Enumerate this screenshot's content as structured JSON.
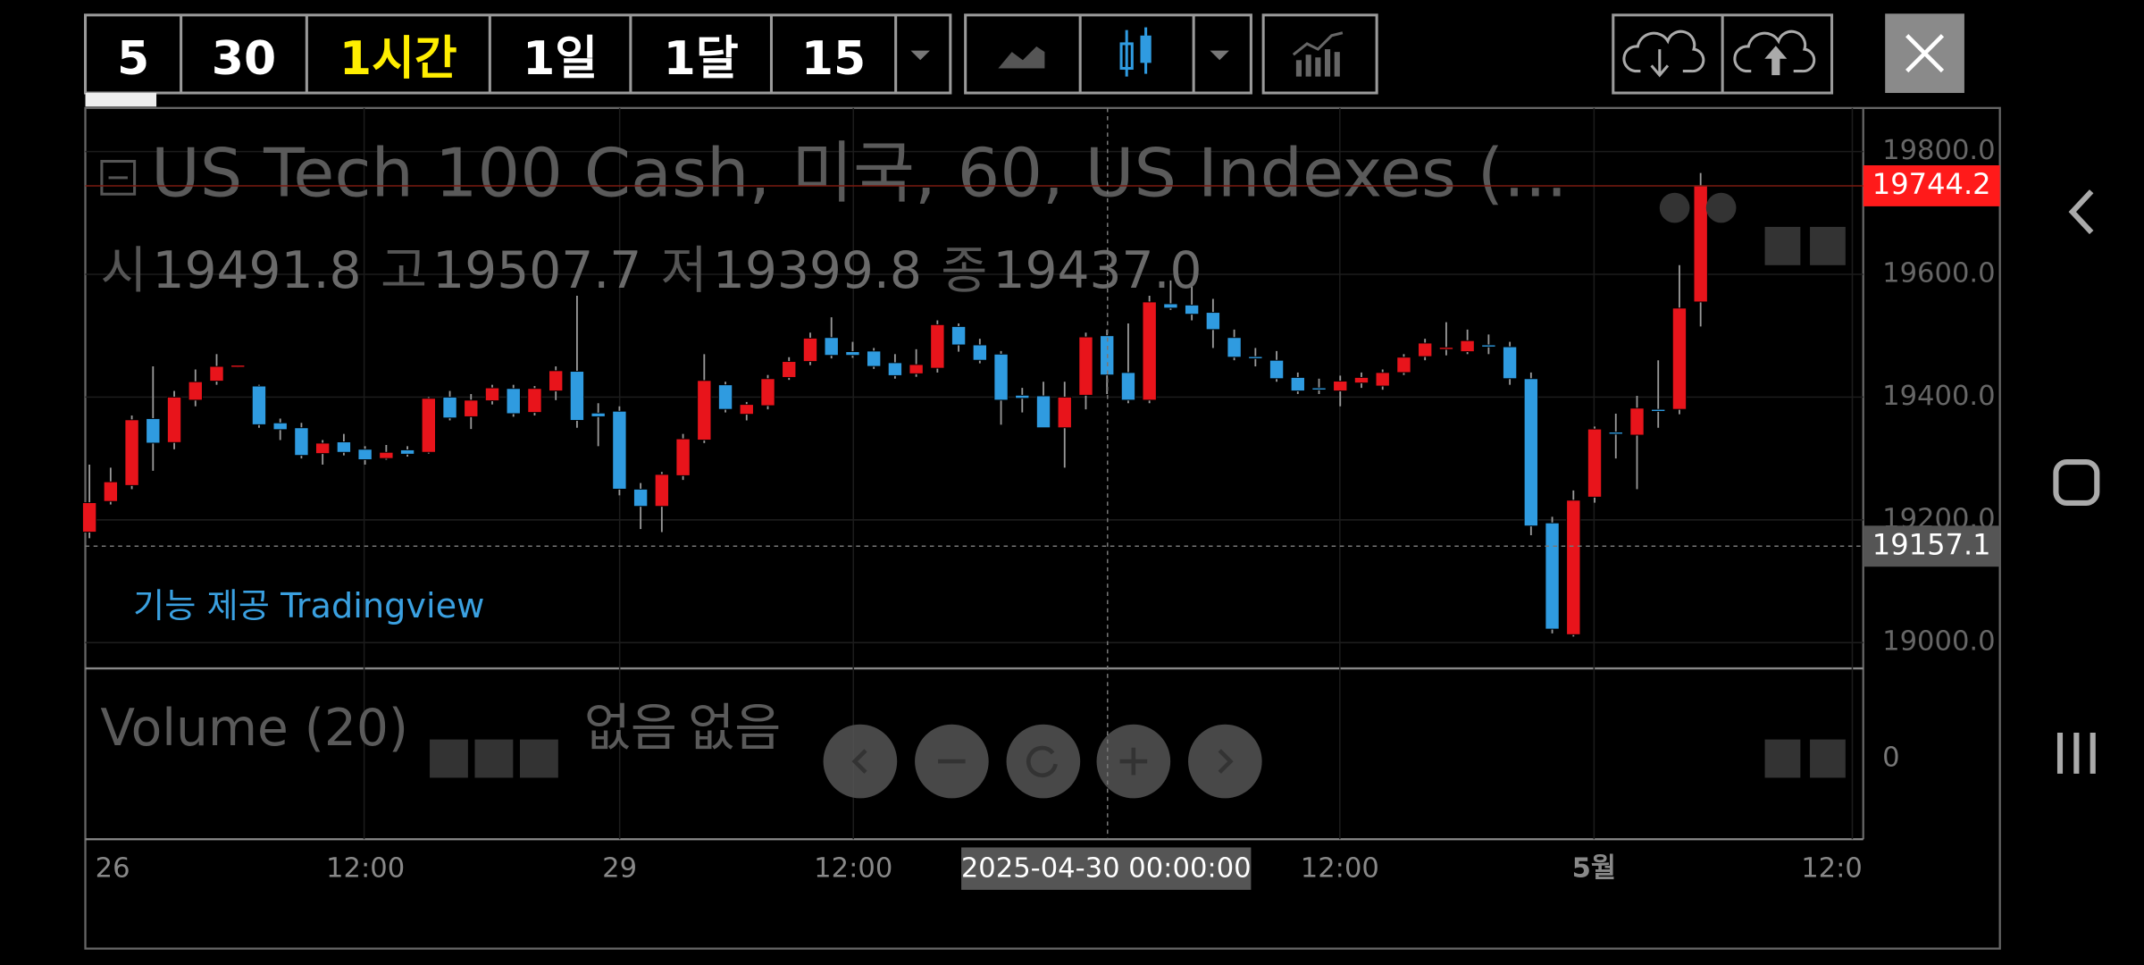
{
  "toolbar": {
    "intervals": [
      "5",
      "30",
      "1시간",
      "1일",
      "1달",
      "15"
    ]
  },
  "chart_data": {
    "type": "candlestick",
    "title": "US Tech 100 Cash, 미국, 60, US Indexes (...",
    "ohlc_legend": [
      {
        "label": "시",
        "value": "19491.8"
      },
      {
        "label": "고",
        "value": "19507.7"
      },
      {
        "label": "저",
        "value": "19399.8"
      },
      {
        "label": "종",
        "value": "19437.0"
      }
    ],
    "attribution": "기능 제공 Tradingview",
    "up_color": "#e8141b",
    "down_color": "#2f9be0",
    "open": [
      19180,
      19230,
      19256,
      19365,
      19326,
      19395,
      19426,
      19450,
      19418,
      19358,
      19350,
      19308,
      19327,
      19315,
      19300,
      19314,
      19310,
      19400,
      19368,
      19394,
      19414,
      19375,
      19410,
      19442,
      19374,
      19377,
      19250,
      19222,
      19272,
      19330,
      19420,
      19372,
      19386,
      19432,
      19458,
      19497,
      19474,
      19475,
      19456,
      19438,
      19447,
      19515,
      19485,
      19470,
      19403,
      19402,
      19350,
      19403,
      19500,
      19440,
      19395,
      19552,
      19550,
      19538,
      19497,
      19466,
      19460,
      19432,
      19415,
      19410,
      19423,
      19418,
      19440,
      19466,
      19478,
      19474,
      19485,
      19482,
      19430,
      19195,
      19013,
      19237,
      19343,
      19338,
      19380,
      19380,
      19555
    ],
    "high": [
      19290,
      19285,
      19370,
      19450,
      19410,
      19445,
      19470,
      19452,
      19420,
      19365,
      19358,
      19330,
      19340,
      19320,
      19322,
      19320,
      19400,
      19410,
      19405,
      19420,
      19420,
      19418,
      19450,
      19565,
      19390,
      19385,
      19260,
      19278,
      19340,
      19470,
      19425,
      19392,
      19436,
      19465,
      19505,
      19530,
      19490,
      19480,
      19470,
      19478,
      19525,
      19520,
      19495,
      19475,
      19415,
      19425,
      19425,
      19505,
      19510,
      19520,
      19565,
      19590,
      19580,
      19560,
      19510,
      19480,
      19475,
      19440,
      19430,
      19435,
      19440,
      19445,
      19470,
      19495,
      19522,
      19510,
      19502,
      19490,
      19440,
      19205,
      19248,
      19352,
      19373,
      19402,
      19460,
      19615,
      19765
    ],
    "low": [
      19170,
      19225,
      19250,
      19280,
      19315,
      19385,
      19420,
      19448,
      19350,
      19330,
      19300,
      19290,
      19305,
      19290,
      19298,
      19303,
      19308,
      19362,
      19348,
      19388,
      19368,
      19370,
      19395,
      19350,
      19320,
      19240,
      19185,
      19180,
      19265,
      19325,
      19375,
      19362,
      19380,
      19428,
      19452,
      19463,
      19464,
      19446,
      19430,
      19433,
      19440,
      19474,
      19455,
      19355,
      19375,
      19350,
      19285,
      19380,
      19405,
      19390,
      19390,
      19542,
      19525,
      19480,
      19460,
      19450,
      19425,
      19405,
      19405,
      19385,
      19415,
      19412,
      19436,
      19460,
      19468,
      19470,
      19470,
      19420,
      19175,
      19015,
      19010,
      19228,
      19300,
      19250,
      19350,
      19372,
      19515
    ],
    "close": [
      19228,
      19262,
      19363,
      19325,
      19400,
      19425,
      19450,
      19452,
      19355,
      19347,
      19305,
      19325,
      19310,
      19298,
      19310,
      19307,
      19398,
      19366,
      19395,
      19415,
      19373,
      19414,
      19443,
      19362,
      19368,
      19250,
      19222,
      19274,
      19332,
      19427,
      19380,
      19388,
      19430,
      19458,
      19496,
      19468,
      19468,
      19450,
      19435,
      19453,
      19518,
      19485,
      19460,
      19395,
      19398,
      19350,
      19400,
      19498,
      19436,
      19395,
      19555,
      19545,
      19535,
      19510,
      19465,
      19464,
      19430,
      19410,
      19414,
      19426,
      19432,
      19440,
      19465,
      19488,
      19481,
      19492,
      19484,
      19430,
      19190,
      19022,
      19232,
      19348,
      19342,
      19382,
      19378,
      19545,
      19744
    ],
    "ylim": [
      18958,
      19871
    ],
    "yticks": [
      {
        "value": 19000,
        "label": "19000.0"
      },
      {
        "value": 19200,
        "label": "19200.0"
      },
      {
        "value": 19400,
        "label": "19400.0"
      },
      {
        "value": 19600,
        "label": "19600.0"
      },
      {
        "value": 19800,
        "label": "19800.0"
      }
    ],
    "last_price": 19744.2,
    "crosshair_price": 19157.1,
    "crosshair_time": "2025-04-30 00:00:00",
    "x_labels": [
      "26",
      "12:00",
      "29",
      "12:00",
      "12:00",
      "5월",
      "12:0"
    ],
    "volume_title": "Volume (20)",
    "volume_values": [
      "없음",
      "없음"
    ],
    "volume_yticks": [
      0
    ]
  }
}
